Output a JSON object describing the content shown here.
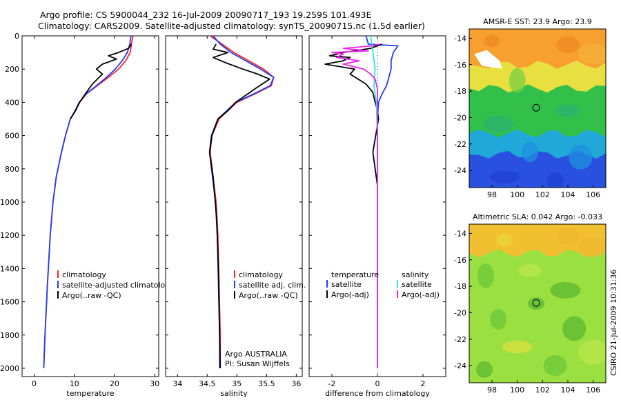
{
  "header": {
    "line1": "Argo profile: CS 5900044_232 16-Jul-2009 20090717_193 19.259S 101.493E",
    "line2": "Climatology: CARS2009. Satellite-adjusted climatology: synTS_20090715.nc (1.5d earlier)"
  },
  "side_label": "CSIRO 21-Jul-2009 10:31:36",
  "colors": {
    "climatology": "#ff2020",
    "satellite": "#1f3bff",
    "argo": "#000000",
    "salinity_satellite": "#22e8e8",
    "salinity_argo": "#ee22ee"
  },
  "chart_data": [
    {
      "type": "line",
      "name": "temperature-profile",
      "xlabel": "temperature",
      "ylabel": "",
      "xlim": [
        -3,
        31
      ],
      "ylim": [
        2050,
        0
      ],
      "xticks": [
        "0",
        "10",
        "20",
        "30"
      ],
      "yticks": [
        "0",
        "200",
        "400",
        "600",
        "800",
        "1000",
        "1200",
        "1400",
        "1600",
        "1800",
        "2000"
      ],
      "legend": [
        "climatology",
        "satellite-adjusted climatology",
        "Argo(..raw -QC)"
      ],
      "legend_position": "lower-right",
      "series": [
        {
          "name": "climatology",
          "color_key": "climatology",
          "x": [
            24.6,
            24.2,
            23.9,
            22.8,
            21,
            18.5,
            15.7,
            13,
            11.3,
            10.3,
            9,
            7.8,
            6.8,
            5.5,
            4.7,
            4,
            3.3,
            2.7,
            2.4
          ],
          "y": [
            0,
            50,
            100,
            150,
            200,
            250,
            300,
            350,
            400,
            450,
            500,
            600,
            700,
            850,
            1000,
            1200,
            1500,
            1800,
            2000
          ]
        },
        {
          "name": "satellite-adjusted climatology",
          "color_key": "satellite",
          "x": [
            24.1,
            23.8,
            23.2,
            21.9,
            20.2,
            18,
            15.5,
            12.9,
            11.2,
            10.2,
            9,
            7.8,
            6.8,
            5.5,
            4.7,
            4,
            3.3,
            2.7,
            2.4
          ],
          "y": [
            0,
            50,
            100,
            150,
            200,
            250,
            300,
            350,
            400,
            450,
            500,
            600,
            700,
            850,
            1000,
            1200,
            1500,
            1800,
            2000
          ]
        },
        {
          "name": "Argo(..raw -QC)",
          "color_key": "argo",
          "x": [
            24.2,
            23.5,
            21,
            18.5,
            20.5,
            17,
            15.5,
            17,
            14.5,
            13,
            11.3,
            10.3,
            9
          ],
          "y": [
            50,
            75,
            100,
            120,
            140,
            170,
            200,
            230,
            290,
            340,
            400,
            450,
            500
          ]
        }
      ]
    },
    {
      "type": "line",
      "name": "salinity-profile",
      "xlabel": "salinity",
      "ylabel": "",
      "xlim": [
        33.8,
        36.1
      ],
      "ylim": [
        2050,
        0
      ],
      "xticks": [
        "34",
        "34.5",
        "35",
        "35.5",
        "36"
      ],
      "legend": [
        "climatology",
        "satellite adj. clim.",
        "Argo(..raw -QC)"
      ],
      "legend_position": "lower-right",
      "annotations": [
        "Argo AUSTRALIA",
        "PI: Susan Wijffels"
      ],
      "series": [
        {
          "name": "climatology",
          "color_key": "climatology",
          "x": [
            34.55,
            34.75,
            34.95,
            35.2,
            35.45,
            35.62,
            35.58,
            35.3,
            35,
            34.85,
            34.7,
            34.58,
            34.55,
            34.6,
            34.65,
            34.68,
            34.7,
            34.72,
            34.72
          ],
          "y": [
            0,
            50,
            100,
            150,
            200,
            250,
            300,
            350,
            400,
            450,
            500,
            600,
            700,
            850,
            1000,
            1200,
            1500,
            1800,
            2000
          ]
        },
        {
          "name": "satellite adj. clim.",
          "color_key": "satellite",
          "x": [
            34.6,
            34.72,
            34.9,
            35.15,
            35.4,
            35.62,
            35.56,
            35.28,
            34.98,
            34.83,
            34.68,
            34.57,
            34.54,
            34.59,
            34.64,
            34.67,
            34.69,
            34.71,
            34.71
          ],
          "y": [
            0,
            50,
            100,
            150,
            200,
            250,
            300,
            350,
            400,
            450,
            500,
            600,
            700,
            850,
            1000,
            1200,
            1500,
            1800,
            2000
          ]
        },
        {
          "name": "Argo(..raw -QC)",
          "color_key": "argo",
          "x": [
            34.65,
            34.6,
            34.85,
            34.6,
            34.8,
            35.1,
            35.35,
            35.55,
            35.3,
            34.98,
            34.85,
            34.68,
            34.58,
            34.54,
            34.6,
            34.66,
            34.69,
            34.71,
            34.72
          ],
          "y": [
            50,
            80,
            100,
            130,
            160,
            200,
            230,
            260,
            320,
            400,
            450,
            500,
            600,
            700,
            850,
            1100,
            1400,
            1800,
            2000
          ]
        }
      ]
    },
    {
      "type": "line",
      "name": "difference-profile",
      "xlabel": "difference from climatology",
      "ylabel": "",
      "xlim": [
        -3,
        3
      ],
      "ylim": [
        2050,
        0
      ],
      "xticks": [
        "-2",
        "0",
        "2"
      ],
      "legend": [
        "temperature",
        "satellite",
        "Argo(-adj)",
        "salinity",
        "satellite",
        "Argo(-adj)"
      ],
      "legend_position": "lower-center",
      "series": [
        {
          "name": "temperature satellite",
          "color_key": "satellite",
          "x": [
            -0.5,
            -0.4,
            0.9,
            0.7,
            0.6,
            0.6,
            0.5,
            0.4,
            0.2,
            0.05,
            0,
            0,
            0,
            0
          ],
          "y": [
            0,
            50,
            60,
            100,
            150,
            200,
            250,
            300,
            350,
            400,
            500,
            800,
            1400,
            2000
          ]
        },
        {
          "name": "temperature Argo(-adj)",
          "color_key": "argo",
          "x": [
            0.2,
            -0.3,
            -1.5,
            -2.1,
            -1.2,
            -1.5,
            -2.3,
            -1,
            -1.2,
            -0.5,
            -0.2,
            -0.1,
            0,
            0.05,
            -0.2,
            0,
            0,
            0
          ],
          "y": [
            50,
            75,
            100,
            120,
            130,
            150,
            170,
            200,
            230,
            290,
            340,
            400,
            450,
            500,
            700,
            900,
            1400,
            2000
          ]
        },
        {
          "name": "salinity satellite",
          "color_key": "salinity_satellite",
          "x": [
            -0.3,
            -0.2,
            -0.1,
            -0.15,
            -0.05,
            0,
            0,
            0
          ],
          "y": [
            0,
            100,
            200,
            300,
            400,
            600,
            1000,
            2000
          ]
        },
        {
          "name": "salinity Argo(-adj)",
          "color_key": "salinity_argo",
          "x": [
            0.1,
            -0.2,
            -1.5,
            -0.4,
            -2,
            -1.5,
            -1.8,
            -0.8,
            -1.5,
            -0.6,
            -0.3,
            -0.1,
            0,
            0,
            0
          ],
          "y": [
            50,
            60,
            75,
            90,
            100,
            110,
            130,
            150,
            170,
            200,
            230,
            260,
            320,
            700,
            2000
          ]
        }
      ]
    },
    {
      "type": "heatmap",
      "name": "sst-map",
      "title": "AMSR-E SST: 23.9 Argo: 23.9",
      "xlim": [
        96.2,
        107
      ],
      "ylim": [
        -25.3,
        -13.3
      ],
      "xticks": [
        "98",
        "100",
        "102",
        "104",
        "106"
      ],
      "yticks": [
        "-14",
        "-16",
        "-18",
        "-20",
        "-22",
        "-24"
      ],
      "marker": {
        "lon": 101.493,
        "lat": -19.259
      },
      "color_bands": [
        {
          "lat_top": -13.3,
          "lat_bottom": -16,
          "color": "#f7a030"
        },
        {
          "lat_top": -16,
          "lat_bottom": -17.8,
          "color": "#e8e040"
        },
        {
          "lat_top": -17.8,
          "lat_bottom": -21.2,
          "color": "#32c04a"
        },
        {
          "lat_top": -21.2,
          "lat_bottom": -22.8,
          "color": "#20a8d8"
        },
        {
          "lat_top": -22.8,
          "lat_bottom": -25.3,
          "color": "#2a50e0"
        }
      ]
    },
    {
      "type": "heatmap",
      "name": "sla-map",
      "title": "Altimetric SLA: 0.042 Argo: -0.033",
      "side_label": "CSIRO 21-Jul-2009 10:31:36",
      "xlim": [
        96.2,
        107
      ],
      "ylim": [
        -25.3,
        -13.3
      ],
      "xticks": [
        "98",
        "100",
        "102",
        "104",
        "106"
      ],
      "yticks": [
        "-14",
        "-16",
        "-18",
        "-20",
        "-22",
        "-24"
      ],
      "marker": {
        "lon": 101.493,
        "lat": -19.259
      },
      "color_bands": [
        {
          "lat_top": -13.3,
          "lat_bottom": -15.5,
          "color": "#f0c030"
        },
        {
          "lat_top": -15.5,
          "lat_bottom": -25.3,
          "color": "#9ae040"
        }
      ]
    }
  ]
}
